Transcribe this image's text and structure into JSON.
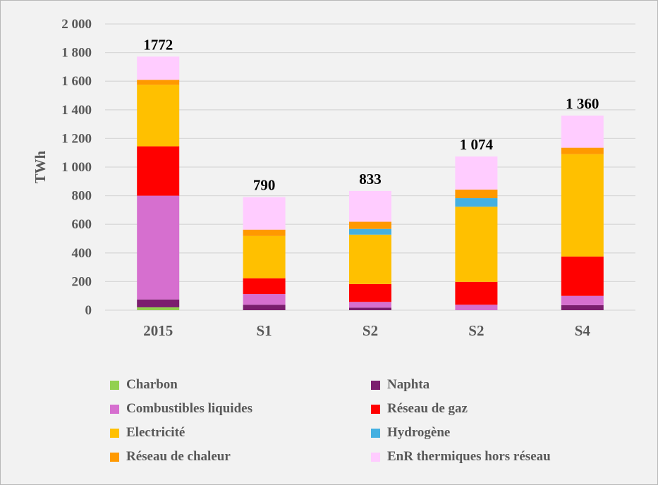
{
  "chart_data": {
    "type": "bar",
    "stacked": true,
    "ylabel": "TWh",
    "ylim": [
      0,
      2000
    ],
    "yticks": [
      0,
      200,
      400,
      600,
      800,
      1000,
      1200,
      1400,
      1600,
      1800,
      2000
    ],
    "ytick_labels": [
      "0",
      "200",
      "400",
      "600",
      "800",
      "1 000",
      "1 200",
      "1 400",
      "1 600",
      "1 800",
      "2 000"
    ],
    "grid": true,
    "legend_position": "bottom",
    "categories": [
      "2015",
      "S1",
      "S2",
      "S2",
      "S4"
    ],
    "totals": [
      "1772",
      "790",
      "833",
      "1 074",
      "1 360"
    ],
    "series": [
      {
        "name": "Charbon",
        "color": "#92d050",
        "values": [
          20,
          0,
          0,
          0,
          0
        ]
      },
      {
        "name": "Naphta",
        "color": "#7b1e6e",
        "values": [
          55,
          38,
          18,
          0,
          35
        ]
      },
      {
        "name": "Combustibles liquides",
        "color": "#d66fcf",
        "values": [
          725,
          75,
          40,
          38,
          65
        ]
      },
      {
        "name": "Réseau de gaz",
        "color": "#ff0000",
        "values": [
          345,
          110,
          125,
          160,
          275
        ]
      },
      {
        "name": "Electricité",
        "color": "#ffc000",
        "values": [
          430,
          295,
          345,
          525,
          715
        ]
      },
      {
        "name": "Hydrogène",
        "color": "#45b0e1",
        "values": [
          0,
          0,
          40,
          60,
          0
        ]
      },
      {
        "name": "Réseau de chaleur",
        "color": "#ff9900",
        "values": [
          35,
          45,
          50,
          60,
          45
        ]
      },
      {
        "name": "EnR thermiques hors réseau",
        "color": "#ffccff",
        "values": [
          162,
          227,
          215,
          231,
          225
        ]
      }
    ]
  }
}
